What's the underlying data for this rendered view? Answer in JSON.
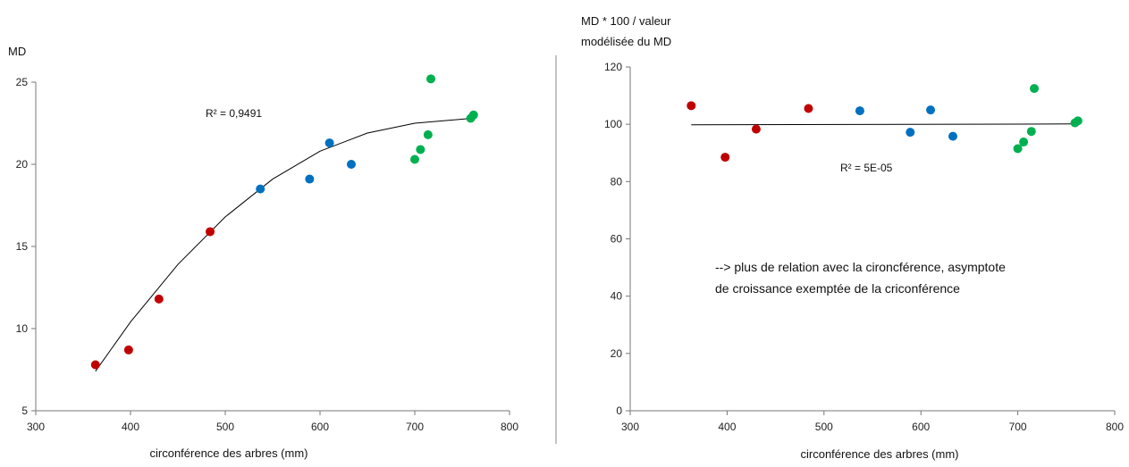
{
  "chart_data": [
    {
      "type": "scatter",
      "ylabel_lines": [
        "MD"
      ],
      "xlabel": "circonférence des arbres (mm)",
      "xlim": [
        300,
        800
      ],
      "ylim": [
        5,
        25
      ],
      "xticks": [
        300,
        400,
        500,
        600,
        700,
        800
      ],
      "yticks": [
        5,
        10,
        15,
        20,
        25
      ],
      "grid": false,
      "annotations": [
        {
          "text": "R² = 0,9491"
        }
      ],
      "trendline": {
        "type": "polynomial-2",
        "x": [
          363,
          400,
          450,
          500,
          550,
          600,
          650,
          700,
          760
        ],
        "y": [
          7.4,
          10.4,
          13.9,
          16.8,
          19.1,
          20.8,
          21.9,
          22.5,
          22.8
        ]
      },
      "points": [
        {
          "x": 363,
          "y": 7.8,
          "color": "#c00000"
        },
        {
          "x": 398,
          "y": 8.7,
          "color": "#c00000"
        },
        {
          "x": 430,
          "y": 11.8,
          "color": "#c00000"
        },
        {
          "x": 484,
          "y": 15.9,
          "color": "#c00000"
        },
        {
          "x": 537,
          "y": 18.5,
          "color": "#0070c0"
        },
        {
          "x": 589,
          "y": 19.1,
          "color": "#0070c0"
        },
        {
          "x": 610,
          "y": 21.3,
          "color": "#0070c0"
        },
        {
          "x": 633,
          "y": 20.0,
          "color": "#0070c0"
        },
        {
          "x": 700,
          "y": 20.3,
          "color": "#00b050"
        },
        {
          "x": 706,
          "y": 20.9,
          "color": "#00b050"
        },
        {
          "x": 714,
          "y": 21.8,
          "color": "#00b050"
        },
        {
          "x": 717,
          "y": 25.2,
          "color": "#00b050"
        },
        {
          "x": 759,
          "y": 22.8,
          "color": "#00b050"
        },
        {
          "x": 762,
          "y": 23.0,
          "color": "#00b050"
        }
      ]
    },
    {
      "type": "scatter",
      "ylabel_lines": [
        "MD * 100 / valeur",
        "modélisée du MD"
      ],
      "xlabel": "circonférence des arbres (mm)",
      "xlim": [
        300,
        800
      ],
      "ylim": [
        0,
        120
      ],
      "xticks": [
        300,
        400,
        500,
        600,
        700,
        800
      ],
      "yticks": [
        0,
        20,
        40,
        60,
        80,
        100,
        120
      ],
      "grid": false,
      "annotations": [
        {
          "text": "R² = 5E-05"
        }
      ],
      "note_lines": [
        "--> plus de relation avec la cironcférence, asymptote",
        "de croissance exemptée de la criconférence"
      ],
      "trendline": {
        "type": "linear",
        "x": [
          363,
          762
        ],
        "y": [
          99.8,
          100.1
        ]
      },
      "points": [
        {
          "x": 363,
          "y": 106.5,
          "color": "#c00000"
        },
        {
          "x": 398,
          "y": 88.5,
          "color": "#c00000"
        },
        {
          "x": 430,
          "y": 98.3,
          "color": "#c00000"
        },
        {
          "x": 484,
          "y": 105.5,
          "color": "#c00000"
        },
        {
          "x": 537,
          "y": 104.7,
          "color": "#0070c0"
        },
        {
          "x": 589,
          "y": 97.2,
          "color": "#0070c0"
        },
        {
          "x": 610,
          "y": 105.0,
          "color": "#0070c0"
        },
        {
          "x": 633,
          "y": 95.8,
          "color": "#0070c0"
        },
        {
          "x": 700,
          "y": 91.5,
          "color": "#00b050"
        },
        {
          "x": 706,
          "y": 93.8,
          "color": "#00b050"
        },
        {
          "x": 714,
          "y": 97.5,
          "color": "#00b050"
        },
        {
          "x": 717,
          "y": 112.5,
          "color": "#00b050"
        },
        {
          "x": 759,
          "y": 100.5,
          "color": "#00b050"
        },
        {
          "x": 762,
          "y": 101.2,
          "color": "#00b050"
        }
      ]
    }
  ]
}
